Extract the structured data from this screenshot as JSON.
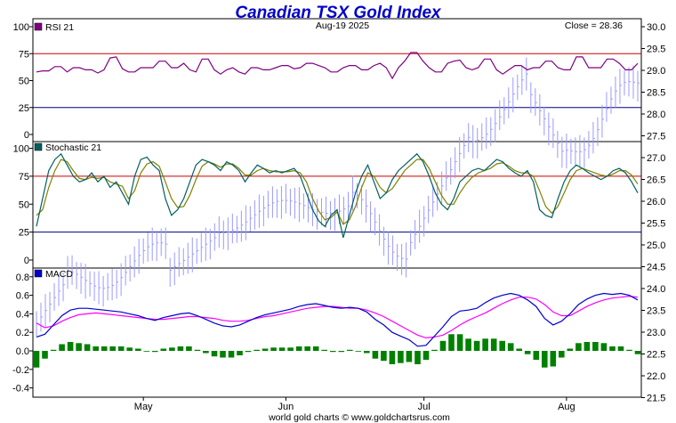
{
  "chart_data": {
    "type": "financial-multipanel",
    "title": "Canadian TSX Gold Index",
    "date": "Aug-19  2025",
    "close_label": "Close = 28.36",
    "footer": "world gold charts © www.goldchartsrus.com",
    "colors": {
      "title": "#0000cc",
      "price_bar": "#9999ff",
      "rsi": "#800080",
      "stoch_k": "#006060",
      "stoch_d": "#808000",
      "macd": "#0000cc",
      "signal": "#ff00ff",
      "hist": "#008000",
      "upper_ref": "#cc0000",
      "lower_ref": "#000080"
    },
    "x_labels": [
      {
        "label": "May",
        "day": 24
      },
      {
        "label": "Jun",
        "day": 56
      },
      {
        "label": "Jul",
        "day": 87
      },
      {
        "label": "Aug",
        "day": 119
      }
    ],
    "price_axis": {
      "ticks": [
        "30.0",
        "29.5",
        "29.0",
        "28.5",
        "28.0",
        "27.5",
        "27.0",
        "26.5",
        "26.0",
        "25.5",
        "25.0",
        "24.5",
        "24.0",
        "23.5",
        "23.0",
        "22.5",
        "22.0",
        "21.5"
      ],
      "min": 21.3,
      "max": 30.0
    },
    "rsi": {
      "label": "RSI 21",
      "ticks": [
        "100",
        "75",
        "50",
        "25",
        "0"
      ],
      "ylim": [
        0,
        100
      ],
      "ref_upper": 75,
      "ref_lower": 25,
      "values": [
        58,
        59,
        60,
        61,
        64,
        66,
        65,
        62,
        61,
        64,
        66,
        64,
        63,
        62,
        61,
        60,
        59,
        56,
        60,
        64,
        70,
        71,
        70,
        67,
        66,
        57,
        55,
        53,
        52,
        53,
        60,
        61,
        61,
        62,
        62,
        61,
        60,
        61,
        62,
        63,
        65,
        63,
        66,
        67,
        66,
        61,
        59,
        58,
        61,
        64,
        65,
        67,
        69,
        71,
        73,
        76,
        74,
        72,
        68,
        65,
        60,
        57,
        56,
        55,
        58,
        62,
        64,
        66,
        65,
        63,
        62,
        62,
        59,
        56,
        52,
        49,
        51,
        53,
        56,
        58,
        59,
        60,
        62,
        61,
        60,
        62,
        64,
        65,
        64,
        66,
        68,
        70,
        72,
        71,
        70,
        69,
        68,
        67,
        68,
        70,
        72,
        70,
        66,
        64,
        65,
        68,
        69,
        68,
        66,
        64,
        62,
        61,
        62,
        64,
        66,
        67,
        65,
        63,
        61,
        63,
        65
      ],
      "shape": [
        58,
        59,
        59,
        63,
        63,
        58,
        62,
        62,
        60,
        60,
        57,
        60,
        71,
        72,
        61,
        58,
        58,
        62,
        62,
        62,
        68,
        68,
        62,
        62,
        66,
        60,
        58,
        70,
        70,
        60,
        56,
        60,
        62,
        58,
        56,
        62,
        62,
        60,
        60,
        62,
        64,
        64,
        61,
        62,
        66,
        66,
        64,
        62,
        58,
        58,
        62,
        64,
        64,
        60,
        60,
        64,
        66,
        62,
        52,
        62,
        68,
        76,
        76,
        68,
        62,
        58,
        58,
        66,
        68,
        69,
        62,
        60,
        62,
        70,
        70,
        60,
        56,
        60,
        64,
        64,
        60,
        62,
        62,
        68,
        68,
        62,
        60,
        60,
        72,
        72,
        62,
        62,
        62,
        70,
        70,
        66,
        60,
        60,
        66
      ]
    },
    "stochastic": {
      "label": "Stochastic 21",
      "ticks": [
        "100",
        "75",
        "50",
        "25",
        "0"
      ],
      "ylim": [
        0,
        100
      ],
      "ref_upper": 75,
      "ref_lower": 25,
      "k": [
        30,
        55,
        80,
        90,
        95,
        85,
        75,
        70,
        72,
        78,
        70,
        75,
        65,
        70,
        60,
        50,
        75,
        90,
        92,
        85,
        80,
        55,
        40,
        45,
        55,
        70,
        85,
        90,
        88,
        85,
        80,
        88,
        85,
        80,
        70,
        78,
        85,
        82,
        78,
        80,
        78,
        80,
        82,
        75,
        60,
        45,
        35,
        30,
        40,
        45,
        20,
        40,
        60,
        75,
        85,
        70,
        55,
        60,
        72,
        80,
        85,
        90,
        95,
        88,
        75,
        60,
        50,
        45,
        55,
        70,
        75,
        80,
        82,
        80,
        85,
        90,
        88,
        82,
        78,
        75,
        80,
        70,
        45,
        40,
        38,
        55,
        70,
        80,
        85,
        82,
        78,
        75,
        72,
        75,
        80,
        82,
        78,
        70,
        60
      ],
      "d": [
        40,
        45,
        65,
        80,
        90,
        88,
        80,
        73,
        72,
        74,
        73,
        74,
        70,
        68,
        66,
        55,
        62,
        78,
        86,
        88,
        84,
        70,
        55,
        47,
        48,
        58,
        72,
        84,
        88,
        86,
        83,
        86,
        86,
        82,
        76,
        76,
        80,
        82,
        80,
        79,
        79,
        79,
        80,
        78,
        70,
        55,
        44,
        36,
        38,
        43,
        32,
        36,
        48,
        65,
        78,
        75,
        65,
        60,
        64,
        72,
        80,
        85,
        90,
        90,
        82,
        70,
        58,
        50,
        50,
        60,
        68,
        74,
        78,
        80,
        82,
        86,
        87,
        84,
        80,
        78,
        78,
        75,
        62,
        48,
        42,
        48,
        60,
        72,
        80,
        82,
        80,
        78,
        76,
        75,
        77,
        80,
        80,
        76,
        68
      ]
    },
    "macd": {
      "label": "MACD",
      "ticks": [
        "0.8",
        "0.6",
        "0.4",
        "0.2",
        "0.0",
        "-0.2",
        "-0.4"
      ],
      "ylim": [
        -0.45,
        0.85
      ],
      "macd": [
        0.15,
        0.18,
        0.28,
        0.38,
        0.44,
        0.46,
        0.46,
        0.45,
        0.44,
        0.43,
        0.42,
        0.4,
        0.38,
        0.35,
        0.33,
        0.36,
        0.38,
        0.4,
        0.41,
        0.38,
        0.34,
        0.3,
        0.27,
        0.26,
        0.28,
        0.32,
        0.36,
        0.39,
        0.41,
        0.43,
        0.45,
        0.48,
        0.5,
        0.51,
        0.49,
        0.47,
        0.46,
        0.47,
        0.46,
        0.42,
        0.34,
        0.28,
        0.2,
        0.16,
        0.12,
        0.05,
        0.06,
        0.16,
        0.26,
        0.37,
        0.43,
        0.44,
        0.46,
        0.52,
        0.57,
        0.6,
        0.62,
        0.6,
        0.55,
        0.48,
        0.35,
        0.28,
        0.32,
        0.4,
        0.5,
        0.56,
        0.6,
        0.62,
        0.61,
        0.62,
        0.6,
        0.55
      ],
      "signal": [
        0.3,
        0.25,
        0.27,
        0.32,
        0.36,
        0.39,
        0.4,
        0.41,
        0.4,
        0.39,
        0.38,
        0.37,
        0.36,
        0.35,
        0.34,
        0.34,
        0.35,
        0.36,
        0.37,
        0.37,
        0.36,
        0.35,
        0.33,
        0.32,
        0.32,
        0.33,
        0.35,
        0.37,
        0.38,
        0.4,
        0.42,
        0.44,
        0.46,
        0.47,
        0.48,
        0.48,
        0.47,
        0.46,
        0.46,
        0.44,
        0.41,
        0.37,
        0.32,
        0.27,
        0.22,
        0.17,
        0.14,
        0.15,
        0.17,
        0.22,
        0.28,
        0.33,
        0.37,
        0.41,
        0.46,
        0.51,
        0.55,
        0.58,
        0.58,
        0.56,
        0.5,
        0.42,
        0.38,
        0.38,
        0.43,
        0.48,
        0.52,
        0.55,
        0.57,
        0.58,
        0.59,
        0.58
      ]
    }
  }
}
